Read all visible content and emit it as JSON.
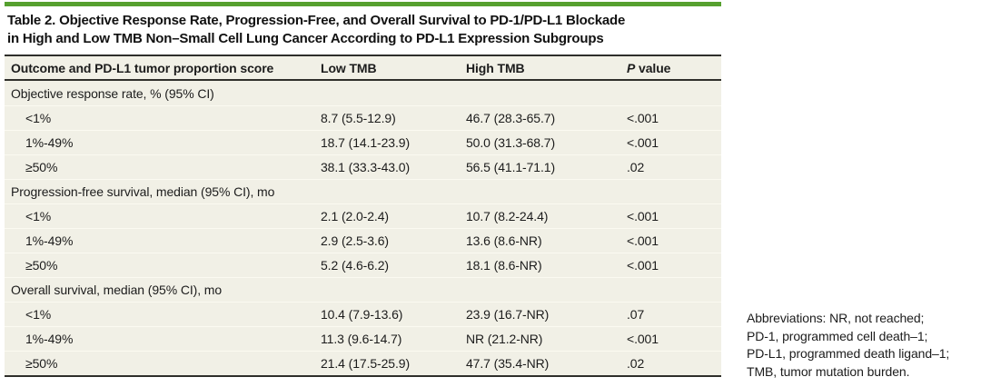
{
  "accent_color": "#56a02f",
  "table": {
    "title_line1": "Table 2. Objective Response Rate, Progression-Free, and Overall Survival to PD-1/PD-L1 Blockade",
    "title_line2": "in High and Low TMB Non–Small Cell Lung Cancer According to PD-L1 Expression Subgroups",
    "columns": {
      "outcome": "Outcome and PD-L1 tumor proportion score",
      "low_tmb": "Low TMB",
      "high_tmb": "High TMB",
      "p_value_italic": "P",
      "p_value_rest": " value"
    },
    "sections": [
      {
        "label": "Objective response rate, % (95% CI)",
        "rows": [
          {
            "label": "<1%",
            "low_tmb": "8.7 (5.5-12.9)",
            "high_tmb": "46.7 (28.3-65.7)",
            "p_value": "<.001"
          },
          {
            "label": "1%-49%",
            "low_tmb": "18.7 (14.1-23.9)",
            "high_tmb": "50.0 (31.3-68.7)",
            "p_value": "<.001"
          },
          {
            "label": "≥50%",
            "low_tmb": "38.1 (33.3-43.0)",
            "high_tmb": "56.5 (41.1-71.1)",
            "p_value": ".02"
          }
        ]
      },
      {
        "label": "Progression-free survival, median (95% CI), mo",
        "rows": [
          {
            "label": "<1%",
            "low_tmb": "2.1 (2.0-2.4)",
            "high_tmb": "10.7 (8.2-24.4)",
            "p_value": "<.001"
          },
          {
            "label": "1%-49%",
            "low_tmb": "2.9 (2.5-3.6)",
            "high_tmb": "13.6 (8.6-NR)",
            "p_value": "<.001"
          },
          {
            "label": "≥50%",
            "low_tmb": "5.2 (4.6-6.2)",
            "high_tmb": "18.1 (8.6-NR)",
            "p_value": "<.001"
          }
        ]
      },
      {
        "label": "Overall survival, median (95% CI), mo",
        "rows": [
          {
            "label": "<1%",
            "low_tmb": "10.4 (7.9-13.6)",
            "high_tmb": "23.9 (16.7-NR)",
            "p_value": ".07"
          },
          {
            "label": "1%-49%",
            "low_tmb": "11.3 (9.6-14.7)",
            "high_tmb": "NR (21.2-NR)",
            "p_value": "<.001"
          },
          {
            "label": "≥50%",
            "low_tmb": "21.4 (17.5-25.9)",
            "high_tmb": "47.7 (35.4-NR)",
            "p_value": ".02"
          }
        ]
      }
    ]
  },
  "footnote": {
    "lines": [
      "Abbreviations: NR, not reached;",
      "PD-1, programmed cell death–1;",
      "PD-L1, programmed death ligand–1;",
      "TMB, tumor mutation burden."
    ]
  }
}
